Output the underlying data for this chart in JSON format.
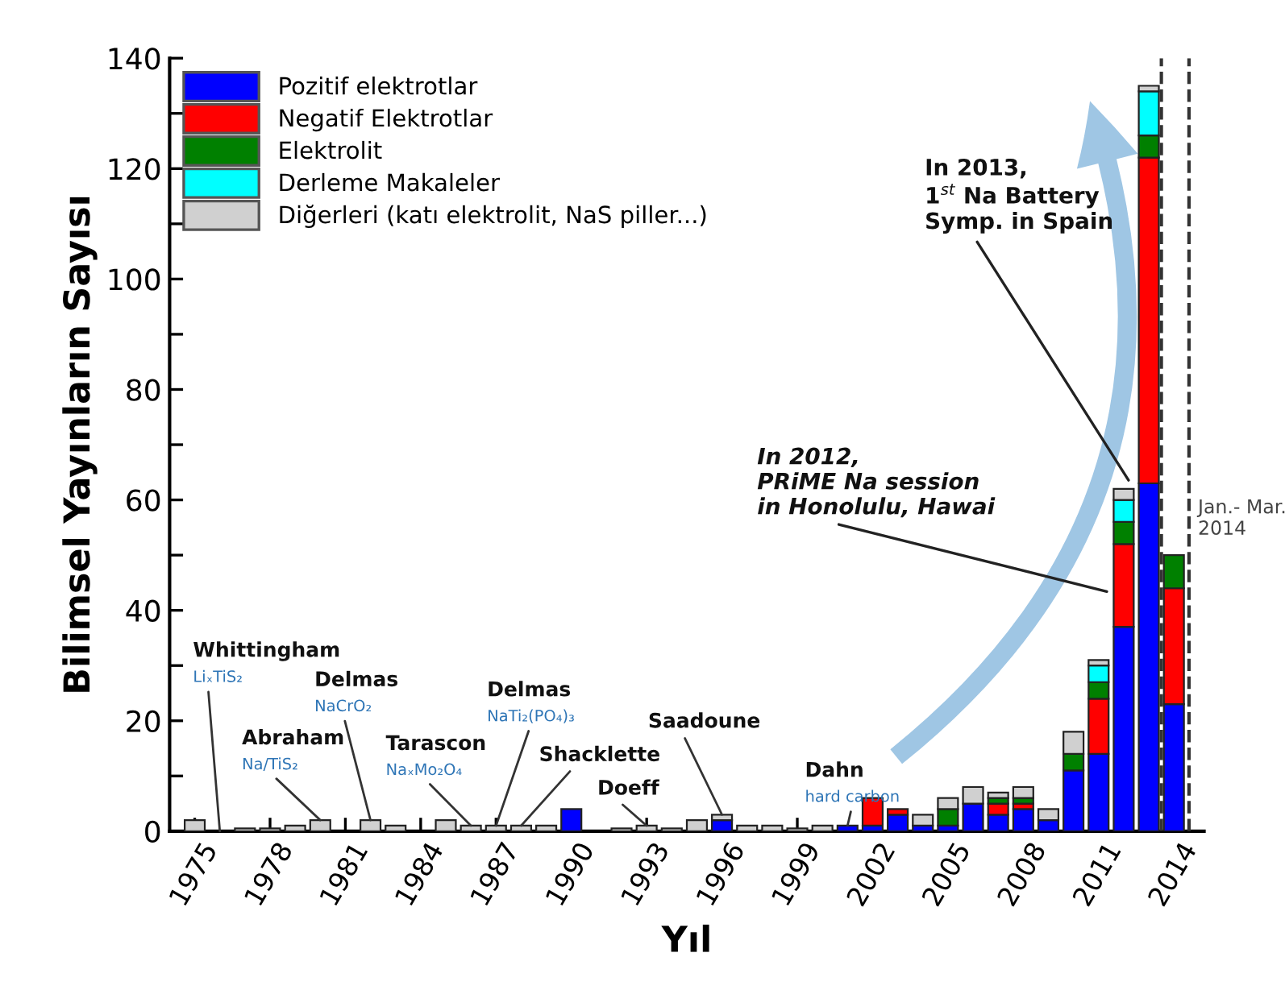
{
  "chart_data": {
    "type": "bar",
    "stacked": true,
    "xlabel": "Yıl",
    "ylabel": "Bilimsel Yayınların Sayısı",
    "x": [
      1975,
      1976,
      1977,
      1978,
      1979,
      1980,
      1981,
      1982,
      1983,
      1984,
      1985,
      1986,
      1987,
      1988,
      1989,
      1990,
      1991,
      1992,
      1993,
      1994,
      1995,
      1996,
      1997,
      1998,
      1999,
      2000,
      2001,
      2002,
      2003,
      2004,
      2005,
      2006,
      2007,
      2008,
      2009,
      2010,
      2011,
      2012,
      2013,
      2014
    ],
    "series": [
      {
        "name": "Pozitif elektrotlar",
        "color": "#0000ff",
        "values": [
          0,
          0,
          0,
          0,
          0,
          0,
          0,
          0,
          0,
          0,
          0,
          0,
          0,
          0,
          0,
          4,
          0,
          0,
          0,
          0,
          0,
          2,
          0,
          0,
          0,
          0,
          1,
          1,
          3,
          1,
          1,
          5,
          3,
          4,
          2,
          11,
          14,
          37,
          63,
          23
        ]
      },
      {
        "name": "Negatif Elektrotlar",
        "color": "#ff0000",
        "values": [
          0,
          0,
          0,
          0,
          0,
          0,
          0,
          0,
          0,
          0,
          0,
          0,
          0,
          0,
          0,
          0,
          0,
          0,
          0,
          0,
          0,
          0,
          0,
          0,
          0,
          0,
          0,
          5,
          1,
          0,
          0,
          0,
          2,
          1,
          0,
          0,
          10,
          15,
          59,
          21
        ]
      },
      {
        "name": "Elektrolit",
        "color": "#008000",
        "values": [
          0,
          0,
          0,
          0,
          0,
          0,
          0,
          0,
          0,
          0,
          0,
          0,
          0,
          0,
          0,
          0,
          0,
          0,
          0,
          0,
          0,
          0,
          0,
          0,
          0,
          0,
          0,
          0,
          0,
          0,
          3,
          0,
          1,
          1,
          0,
          3,
          3,
          4,
          4,
          6
        ]
      },
      {
        "name": "Derleme Makaleler",
        "color": "#00ffff",
        "values": [
          0,
          0,
          0,
          0,
          0,
          0,
          0,
          0,
          0,
          0,
          0,
          0,
          0,
          0,
          0,
          0,
          0,
          0,
          0,
          0,
          0,
          0,
          0,
          0,
          0,
          0,
          0,
          0,
          0,
          0,
          0,
          0,
          0,
          0,
          0,
          0,
          3,
          4,
          8,
          0
        ]
      },
      {
        "name": "Diğerleri (katı elektrolit, NaS piller...)",
        "color": "#d0d0d0",
        "values": [
          2,
          0,
          0.5,
          0.5,
          1,
          2,
          0,
          2,
          1,
          0,
          2,
          1,
          1,
          1,
          1,
          0,
          0,
          0.5,
          1,
          0.5,
          2,
          1,
          1,
          1,
          0.5,
          1,
          0,
          0,
          0,
          2,
          2,
          3,
          1,
          2,
          2,
          4,
          1,
          2,
          1,
          0
        ]
      }
    ],
    "xlim": [
      1974,
      2015.2
    ],
    "xticks": [
      1975,
      1978,
      1981,
      1984,
      1987,
      1990,
      1993,
      1996,
      1999,
      2002,
      2005,
      2008,
      2011,
      2014
    ],
    "ylim": [
      0,
      140
    ],
    "yticks": [
      0,
      {
        "value": 10,
        "label": null
      },
      20,
      {
        "value": 30,
        "label": null
      },
      40,
      {
        "value": 50,
        "label": null
      },
      60,
      {
        "value": 70,
        "label": null
      },
      80,
      {
        "value": 90,
        "label": null
      },
      100,
      {
        "value": 110,
        "label": null
      },
      120,
      {
        "value": 130,
        "label": null
      },
      140
    ],
    "ref_lines": [
      {
        "axis": "x",
        "value": 2013.5,
        "line_style": "dashed",
        "color": "#333333"
      },
      {
        "axis": "x",
        "value": 2014.6,
        "line_style": "dashed",
        "color": "#333333",
        "label": "Jan.- Mar.\n2014"
      }
    ],
    "annotations": [
      "Whittingham",
      {
        "text": "LiₓTiS₂",
        "x": 1976,
        "y": 0
      },
      "Abraham",
      {
        "text": "Na/TiS₂",
        "x": 1980,
        "y": 2
      },
      "Delmas",
      {
        "text": "NaCrO₂",
        "x": 1982,
        "y": 2
      },
      "Tarascon",
      {
        "text": "NaₓMo₂O₄",
        "x": 1986,
        "y": 1
      },
      "Delmas",
      {
        "text": "NaTi₂(PO₄)₃",
        "x": 1987,
        "y": 1
      },
      {
        "text": "Shacklette",
        "x": 1988,
        "y": 1
      },
      {
        "text": "Doeff",
        "x": 1993,
        "y": 1
      },
      {
        "text": "Saadoune",
        "x": 1996,
        "y": 3
      },
      "Dahn",
      {
        "text": "hard carbon",
        "x": 2001,
        "y": 1
      },
      "In 2012,\nPRiME Na session\nin Honolulu, Hawai",
      "In 2013,\n1$^{st}$ Na Battery\nSymp. in Spain"
    ],
    "legend": "top left",
    "grid": false
  }
}
